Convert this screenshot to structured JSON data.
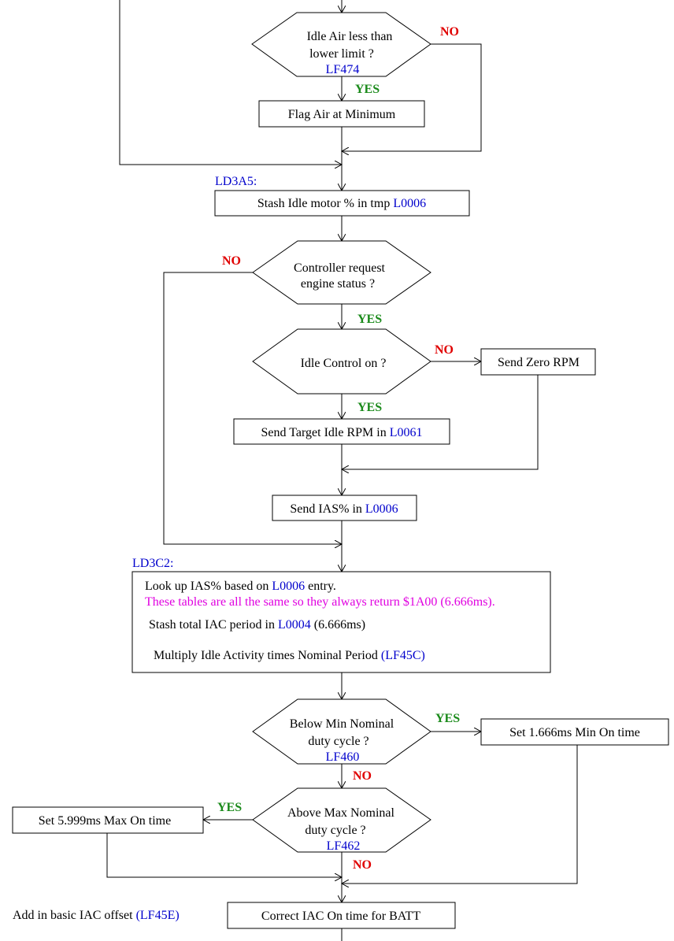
{
  "colors": {
    "line": "#000000",
    "text": "#000000",
    "ref": "#0000cc",
    "no": "#e00000",
    "yes": "#1a8a1a",
    "note": "#e000e0"
  },
  "answers": {
    "yes": "YES",
    "no": "NO"
  },
  "nodes": {
    "d_idle_air": {
      "line1": "Idle Air less than",
      "line2": "lower limit ?",
      "ref": "LF474"
    },
    "b_flag_air": {
      "text": "Flag Air at Minimum"
    },
    "l_ld3a5": {
      "text": "LD3A5:"
    },
    "b_stash_idle": {
      "text": "Stash Idle motor % in tmp ",
      "ref": "L0006"
    },
    "d_ctrl_req": {
      "line1": "Controller request",
      "line2": "engine status ?"
    },
    "d_idle_ctrl": {
      "line1": "Idle Control on ?"
    },
    "b_zero_rpm": {
      "text": "Send Zero RPM"
    },
    "b_target_rpm": {
      "text": "Send Target Idle RPM in ",
      "ref": "L0061"
    },
    "b_send_ias": {
      "text": "Send IAS% in ",
      "ref": "L0006"
    },
    "l_ld3c2": {
      "text": "LD3C2:"
    },
    "b_lookup": {
      "line1": "Look up IAS% based on ",
      "line1_ref": "L0006",
      "line1_tail": " entry.",
      "note": "These tables are all the same so they always return $1A00 (6.666ms).",
      "line3": "Stash total IAC period in ",
      "line3_ref": "L0004",
      "line3_tail": " (6.666ms)",
      "line4": "Multiply Idle Activity times Nominal Period ",
      "line4_ref": "(LF45C)"
    },
    "d_below_min": {
      "line1": "Below Min Nominal",
      "line2": "duty cycle ?",
      "ref": "LF460"
    },
    "b_set_min": {
      "text": "Set 1.666ms Min On time"
    },
    "d_above_max": {
      "line1": "Above Max Nominal",
      "line2": "duty cycle ?",
      "ref": "LF462"
    },
    "b_set_max": {
      "text": "Set 5.999ms Max On time"
    },
    "l_add_offset": {
      "text": "Add in basic IAC offset ",
      "ref": "(LF45E)"
    },
    "b_correct_iac": {
      "text": "Correct IAC On time for BATT"
    }
  }
}
